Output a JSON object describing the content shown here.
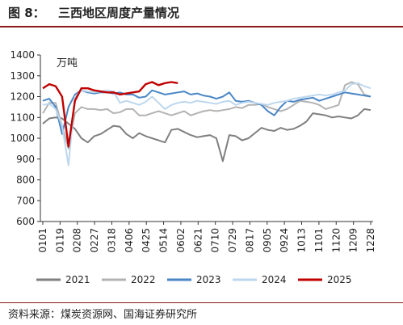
{
  "header": {
    "figure_label": "图 8：",
    "title": "三西地区周度产量情况"
  },
  "source": "资料来源：煤炭资源网、国海证券研究所",
  "chart_data": {
    "type": "line",
    "title": "",
    "unit_label": "万吨",
    "ylim": [
      600,
      1400
    ],
    "yticks": [
      600,
      700,
      800,
      900,
      1000,
      1100,
      1200,
      1300,
      1400
    ],
    "xticks": [
      "0101",
      "0119",
      "0208",
      "0227",
      "0318",
      "0406",
      "0425",
      "0514",
      "0602",
      "0621",
      "0710",
      "0729",
      "0817",
      "0905",
      "0924",
      "1013",
      "1101",
      "1120",
      "1209",
      "1228"
    ],
    "legend_position": "bottom",
    "grid": false,
    "series": [
      {
        "name": "2021",
        "color": "#7f7f7f",
        "values": [
          1070,
          1095,
          1100,
          1095,
          1070,
          1045,
          1000,
          980,
          1010,
          1020,
          1040,
          1060,
          1055,
          1020,
          1000,
          1025,
          1010,
          1000,
          990,
          980,
          1040,
          1045,
          1030,
          1015,
          1005,
          1010,
          1015,
          1000,
          890,
          1015,
          1010,
          990,
          1000,
          1025,
          1050,
          1040,
          1035,
          1050,
          1040,
          1045,
          1060,
          1080,
          1120,
          1115,
          1110,
          1100,
          1105,
          1100,
          1095,
          1110,
          1140,
          1135
        ]
      },
      {
        "name": "2022",
        "color": "#b3b3b3",
        "values": [
          1120,
          1170,
          1170,
          1060,
          950,
          1120,
          1150,
          1140,
          1140,
          1135,
          1140,
          1120,
          1125,
          1140,
          1140,
          1110,
          1110,
          1120,
          1130,
          1120,
          1110,
          1120,
          1130,
          1110,
          1120,
          1130,
          1135,
          1130,
          1135,
          1140,
          1150,
          1145,
          1160,
          1160,
          1165,
          1150,
          1140,
          1130,
          1140,
          1160,
          1180,
          1175,
          1170,
          1160,
          1140,
          1150,
          1160,
          1255,
          1270,
          1260,
          1210,
          1200
        ]
      },
      {
        "name": "2023",
        "color": "#4a86c5",
        "values": [
          1180,
          1190,
          1150,
          1020,
          1150,
          1210,
          1230,
          1220,
          1215,
          1220,
          1220,
          1215,
          1220,
          1210,
          1210,
          1195,
          1200,
          1230,
          1220,
          1210,
          1215,
          1220,
          1225,
          1210,
          1215,
          1205,
          1200,
          1190,
          1200,
          1220,
          1180,
          1175,
          1180,
          1170,
          1160,
          1130,
          1110,
          1150,
          1180,
          1175,
          1185,
          1190,
          1195,
          1180,
          1190,
          1200,
          1210,
          1220,
          1215,
          1210,
          1205,
          1200
        ]
      },
      {
        "name": "2024",
        "color": "#bdd7ee",
        "values": [
          1160,
          1165,
          1140,
          1060,
          870,
          1200,
          1230,
          1225,
          1220,
          1225,
          1230,
          1225,
          1170,
          1180,
          1170,
          1160,
          1175,
          1200,
          1170,
          1140,
          1160,
          1170,
          1175,
          1170,
          1180,
          1175,
          1170,
          1165,
          1175,
          1180,
          1160,
          1170,
          1175,
          1170,
          1165,
          1160,
          1170,
          1175,
          1180,
          1190,
          1195,
          1200,
          1205,
          1210,
          1205,
          1210,
          1220,
          1230,
          1260,
          1265,
          1250,
          1240
        ]
      },
      {
        "name": "2025",
        "color": "#c00000",
        "values": [
          1240,
          1260,
          1250,
          1200,
          960,
          1180,
          1240,
          1240,
          1230,
          1225,
          1220,
          1220,
          1210,
          1215,
          1220,
          1225,
          1260,
          1270,
          1255,
          1265,
          1270,
          1265
        ]
      }
    ]
  }
}
